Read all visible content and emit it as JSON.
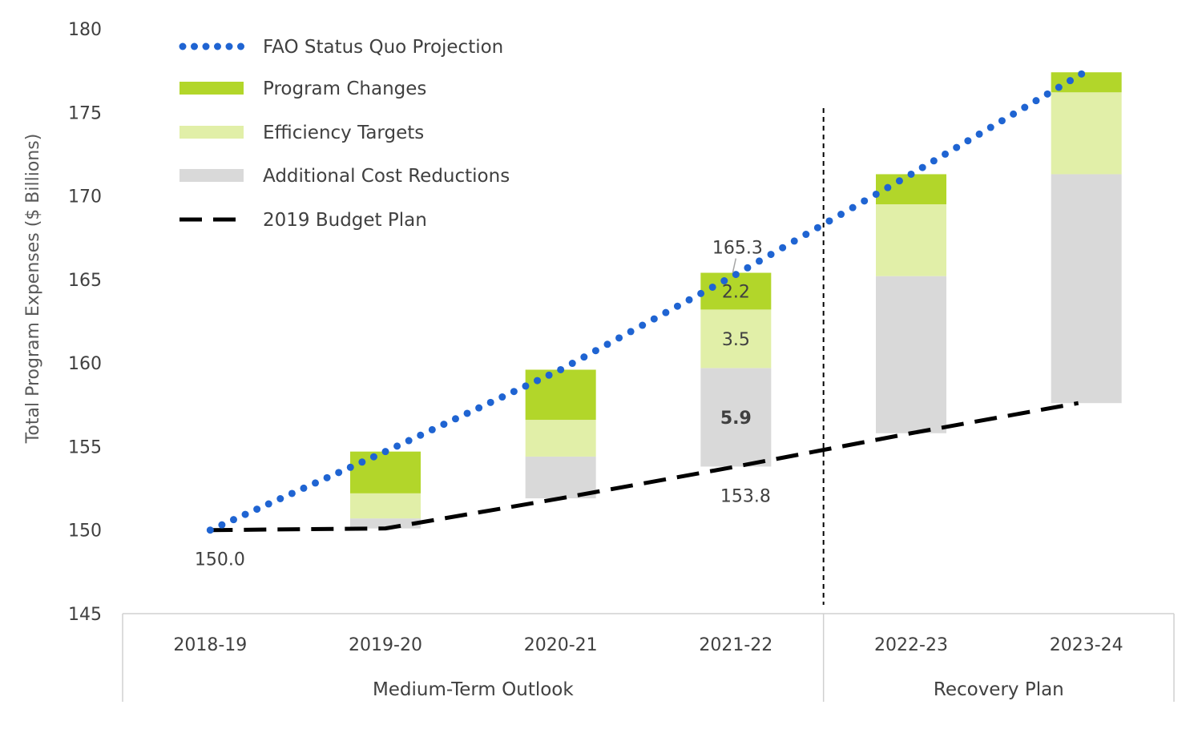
{
  "chart_data": {
    "type": "bar",
    "title": "",
    "ylabel": "Total Program Expenses ($ Billions)",
    "ylim": [
      145,
      180
    ],
    "yticks": [
      145,
      150,
      155,
      160,
      165,
      170,
      175,
      180
    ],
    "categories": [
      "2018-19",
      "2019-20",
      "2020-21",
      "2021-22",
      "2022-23",
      "2023-24"
    ],
    "groups": [
      {
        "label": "Medium-Term Outlook",
        "categories": [
          "2018-19",
          "2019-20",
          "2020-21",
          "2021-22"
        ]
      },
      {
        "label": "Recovery Plan",
        "categories": [
          "2022-23",
          "2023-24"
        ]
      }
    ],
    "stacks": [
      {
        "category": "2019-20",
        "base": 150.1,
        "additional_cost_reductions": 0.6,
        "efficiency_targets": 1.5,
        "program_changes": 2.5
      },
      {
        "category": "2020-21",
        "base": 151.9,
        "additional_cost_reductions": 2.5,
        "efficiency_targets": 2.2,
        "program_changes": 3.0
      },
      {
        "category": "2021-22",
        "base": 153.8,
        "additional_cost_reductions": 5.9,
        "efficiency_targets": 3.5,
        "program_changes": 2.2
      },
      {
        "category": "2022-23",
        "base": 155.8,
        "additional_cost_reductions": 9.4,
        "efficiency_targets": 4.3,
        "program_changes": 1.8
      },
      {
        "category": "2023-24",
        "base": 157.6,
        "additional_cost_reductions": 13.7,
        "efficiency_targets": 4.9,
        "program_changes": 1.2
      }
    ],
    "series": [
      {
        "name": "FAO Status Quo Projection",
        "style": "dotted-line",
        "color": "#1f64d2",
        "values": [
          150.0,
          154.7,
          159.6,
          165.3,
          171.3,
          177.3
        ]
      },
      {
        "name": "Program Changes",
        "style": "bar",
        "color": "#b2d62a"
      },
      {
        "name": "Efficiency Targets",
        "style": "bar",
        "color": "#e1efa8"
      },
      {
        "name": "Additional Cost Reductions",
        "style": "bar",
        "color": "#d9d9d9"
      },
      {
        "name": "2019 Budget Plan",
        "style": "dashed-line",
        "color": "#000000",
        "values": [
          150.0,
          150.1,
          151.9,
          153.8,
          155.8,
          157.6
        ]
      }
    ],
    "data_labels": [
      {
        "category": "2018-19",
        "text": "150.0",
        "value": 150.0
      },
      {
        "category": "2021-22",
        "text": "165.3",
        "value": 165.3
      },
      {
        "category": "2021-22",
        "text": "153.8",
        "value": 153.8
      },
      {
        "category": "2021-22",
        "text": "2.2",
        "value": 2.2,
        "series": "Program Changes"
      },
      {
        "category": "2021-22",
        "text": "3.5",
        "value": 3.5,
        "series": "Efficiency Targets"
      },
      {
        "category": "2021-22",
        "text": "5.9",
        "value": 5.9,
        "series": "Additional Cost Reductions"
      }
    ],
    "divider_after_category": "2021-22",
    "legend_position": "top-left",
    "grid": false
  }
}
